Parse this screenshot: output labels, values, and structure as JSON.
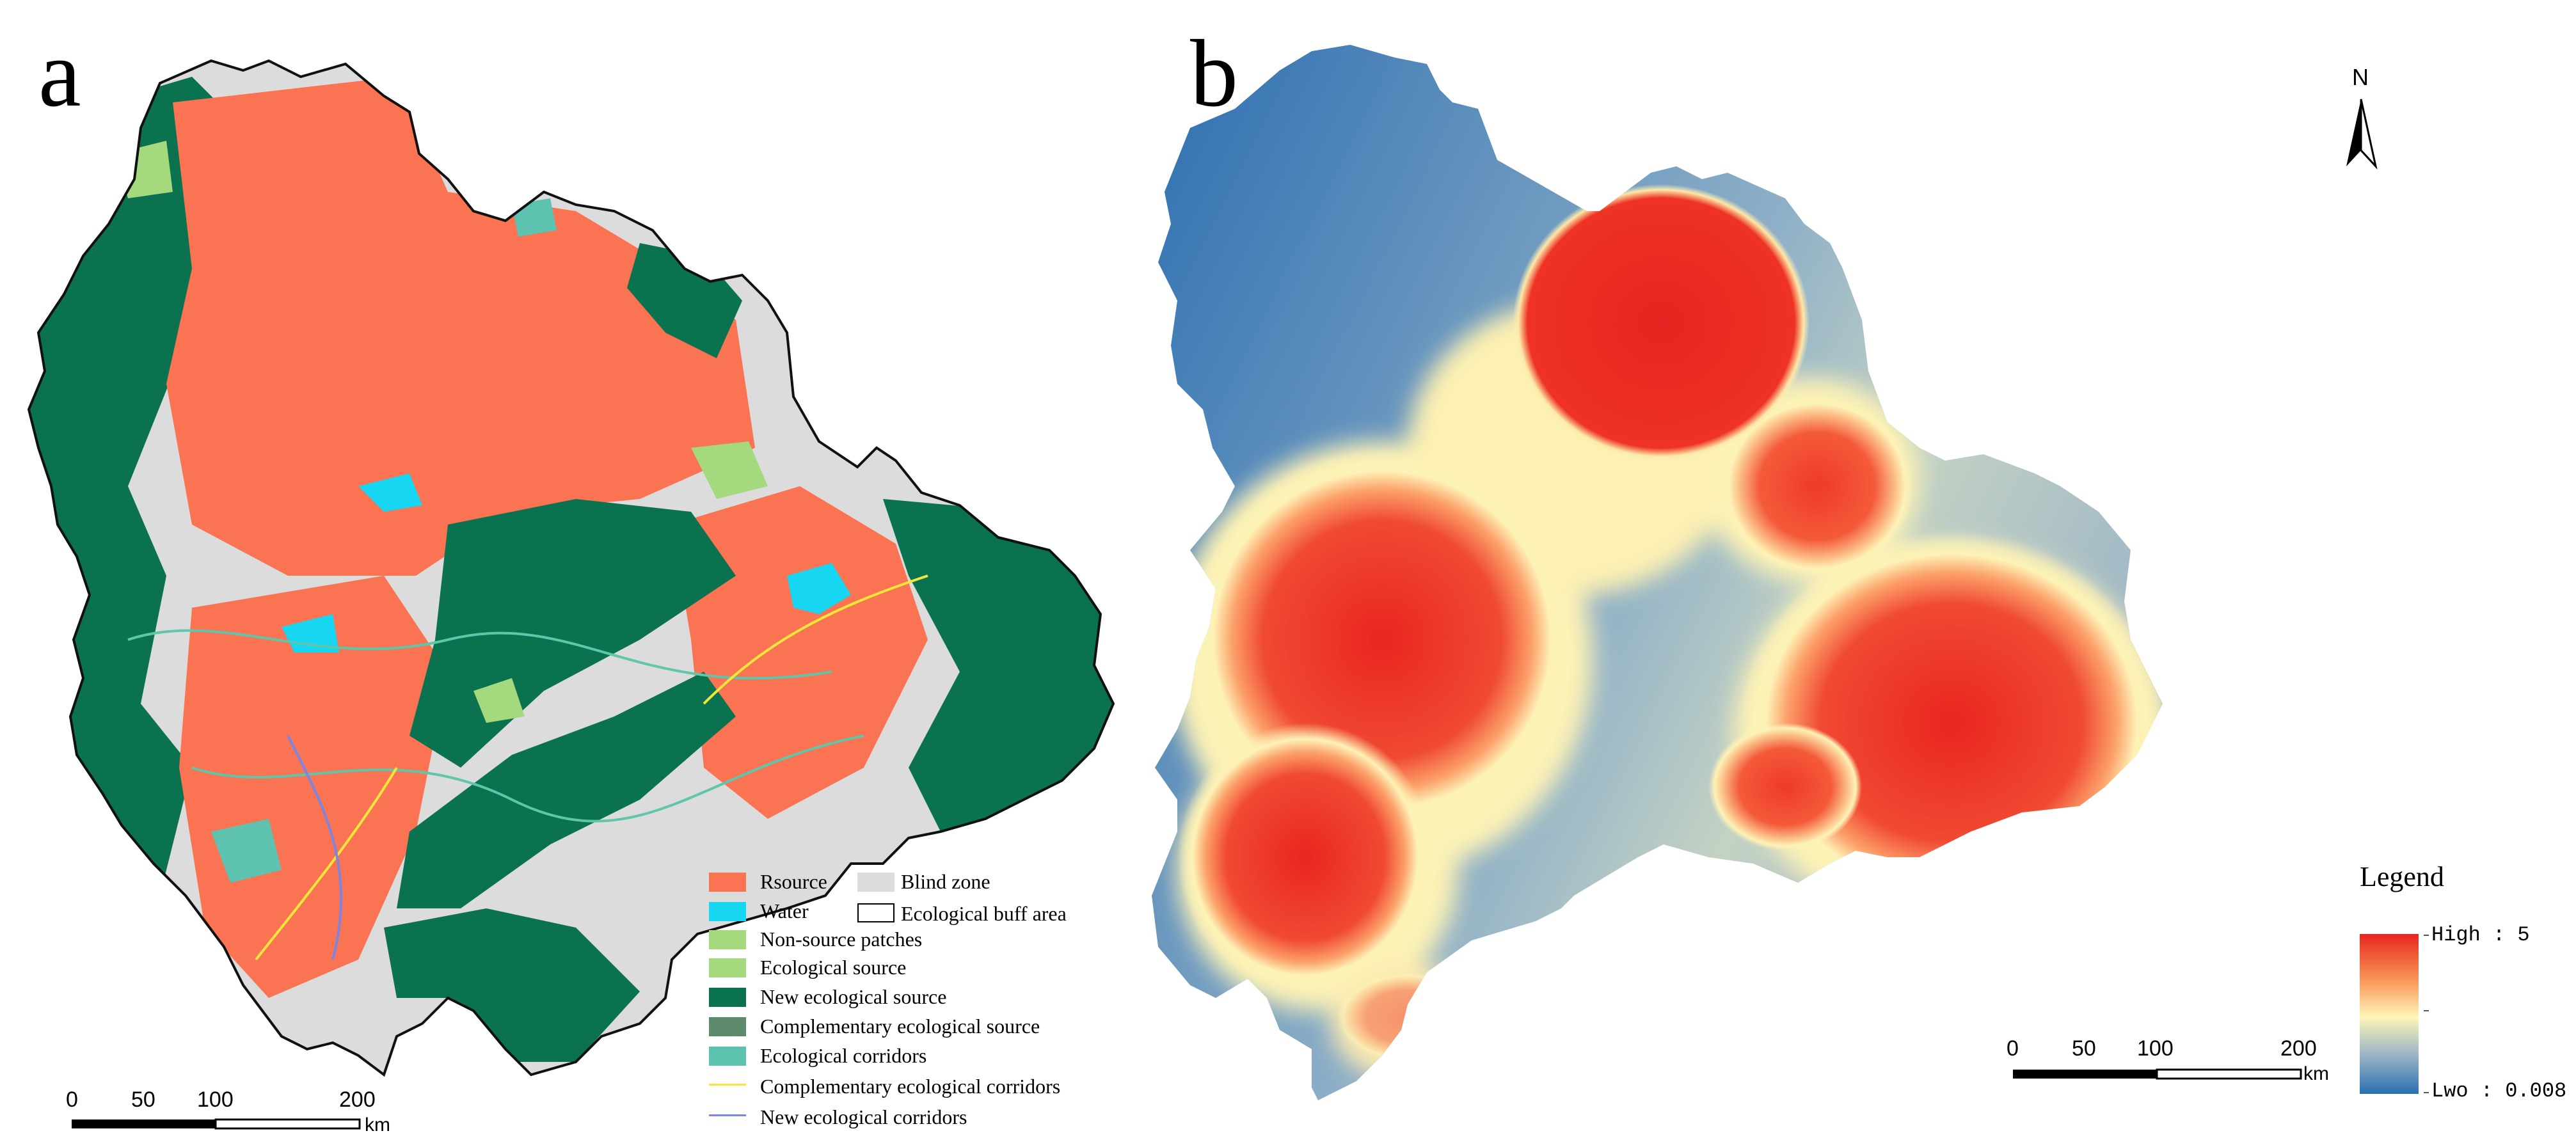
{
  "panel_a": {
    "letter": "a",
    "legend": {
      "rsource": {
        "label": "Rsource",
        "color": "#fa7352"
      },
      "blind_zone": {
        "label": "Blind zone",
        "color": "#dcdcdc"
      },
      "water": {
        "label": "Water",
        "color": "#16d6f2"
      },
      "ecological_buff_area": {
        "label": "Ecological buff area",
        "color": "#ffffff"
      },
      "non_source_patches": {
        "label": "Non-source patches",
        "color": "#a4d97e"
      },
      "ecological_source": {
        "label": "Ecological source",
        "color": "#0b7250"
      },
      "new_ecological_source": {
        "label": "New ecological source",
        "color": "#5e8a6c"
      },
      "complementary_ecological_source": {
        "label": "Complementary ecological source",
        "color": "#5ec2b1"
      },
      "ecological_corridors": {
        "label": "Ecological corridors",
        "color": "#5fc6ac"
      },
      "complementary_ecological_corridors": {
        "label": "Complementary ecological corridors",
        "color": "#f2e63a"
      },
      "new_ecological_corridors": {
        "label": "New ecological corridors",
        "color": "#7a86e0"
      }
    },
    "scale_bar": {
      "ticks": [
        "0",
        "50",
        "100",
        "200"
      ],
      "unit": "km"
    }
  },
  "panel_b": {
    "letter": "b",
    "north_arrow_label": "N",
    "legend": {
      "title": "Legend",
      "high_label": "High : 5",
      "low_label": "Lwo : 0.008",
      "gradient_colors": [
        "#e8251f",
        "#fa9a5a",
        "#fdf6b8",
        "#9fb6c6",
        "#2a6fb2"
      ]
    },
    "scale_bar": {
      "ticks": [
        "0",
        "50",
        "100",
        "200"
      ],
      "unit": "km"
    },
    "colors": {
      "high": "#ec2b22",
      "mid": "#fbf3b5",
      "low": "#2a6db1"
    }
  }
}
